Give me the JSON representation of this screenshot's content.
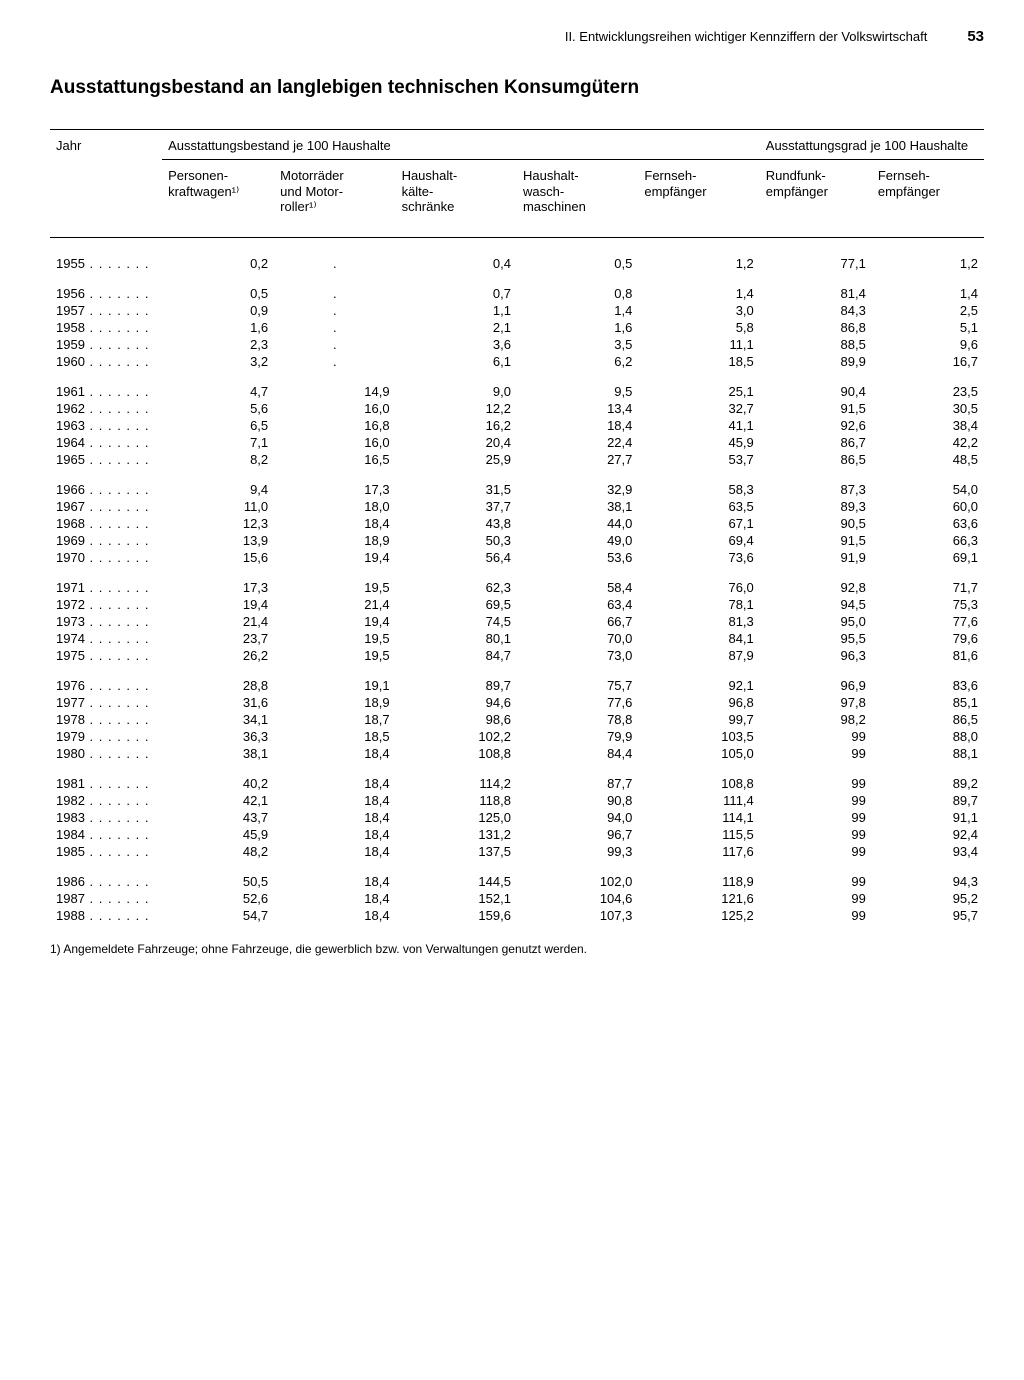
{
  "header": {
    "section": "II. Entwicklungsreihen wichtiger Kennziffern der Volkswirtschaft",
    "page_number": "53"
  },
  "title": "Ausstattungsbestand an langlebigen technischen Konsumgütern",
  "columns": {
    "year": "Jahr",
    "group1": "Ausstattungsbestand je 100 Haushalte",
    "group2": "Ausstattungsgrad je 100 Haushalte",
    "c1": "Personen-\nkraftwagen¹⁾",
    "c2": "Motorräder\nund Motor-\nroller¹⁾",
    "c3": "Haushalt-\nkälte-\nschränke",
    "c4": "Haushalt-\nwasch-\nmaschinen",
    "c5": "Fernseh-\nempfänger",
    "c6": "Rundfunk-\nempfänger",
    "c7": "Fernseh-\nempfänger"
  },
  "footnote": "1) Angemeldete Fahrzeuge; ohne Fahrzeuge, die gewerblich bzw. von Verwaltungen genutzt werden.",
  "rows": [
    {
      "year": "1955",
      "c1": "0,2",
      "c2": ".",
      "c3": "0,4",
      "c4": "0,5",
      "c5": "1,2",
      "c6": "77,1",
      "c7": "1,2",
      "gap": "first"
    },
    {
      "year": "1956",
      "c1": "0,5",
      "c2": ".",
      "c3": "0,7",
      "c4": "0,8",
      "c5": "1,4",
      "c6": "81,4",
      "c7": "1,4",
      "gap": "yes"
    },
    {
      "year": "1957",
      "c1": "0,9",
      "c2": ".",
      "c3": "1,1",
      "c4": "1,4",
      "c5": "3,0",
      "c6": "84,3",
      "c7": "2,5"
    },
    {
      "year": "1958",
      "c1": "1,6",
      "c2": ".",
      "c3": "2,1",
      "c4": "1,6",
      "c5": "5,8",
      "c6": "86,8",
      "c7": "5,1"
    },
    {
      "year": "1959",
      "c1": "2,3",
      "c2": ".",
      "c3": "3,6",
      "c4": "3,5",
      "c5": "11,1",
      "c6": "88,5",
      "c7": "9,6"
    },
    {
      "year": "1960",
      "c1": "3,2",
      "c2": ".",
      "c3": "6,1",
      "c4": "6,2",
      "c5": "18,5",
      "c6": "89,9",
      "c7": "16,7"
    },
    {
      "year": "1961",
      "c1": "4,7",
      "c2": "14,9",
      "c3": "9,0",
      "c4": "9,5",
      "c5": "25,1",
      "c6": "90,4",
      "c7": "23,5",
      "gap": "yes"
    },
    {
      "year": "1962",
      "c1": "5,6",
      "c2": "16,0",
      "c3": "12,2",
      "c4": "13,4",
      "c5": "32,7",
      "c6": "91,5",
      "c7": "30,5"
    },
    {
      "year": "1963",
      "c1": "6,5",
      "c2": "16,8",
      "c3": "16,2",
      "c4": "18,4",
      "c5": "41,1",
      "c6": "92,6",
      "c7": "38,4"
    },
    {
      "year": "1964",
      "c1": "7,1",
      "c2": "16,0",
      "c3": "20,4",
      "c4": "22,4",
      "c5": "45,9",
      "c6": "86,7",
      "c7": "42,2"
    },
    {
      "year": "1965",
      "c1": "8,2",
      "c2": "16,5",
      "c3": "25,9",
      "c4": "27,7",
      "c5": "53,7",
      "c6": "86,5",
      "c7": "48,5"
    },
    {
      "year": "1966",
      "c1": "9,4",
      "c2": "17,3",
      "c3": "31,5",
      "c4": "32,9",
      "c5": "58,3",
      "c6": "87,3",
      "c7": "54,0",
      "gap": "yes"
    },
    {
      "year": "1967",
      "c1": "11,0",
      "c2": "18,0",
      "c3": "37,7",
      "c4": "38,1",
      "c5": "63,5",
      "c6": "89,3",
      "c7": "60,0"
    },
    {
      "year": "1968",
      "c1": "12,3",
      "c2": "18,4",
      "c3": "43,8",
      "c4": "44,0",
      "c5": "67,1",
      "c6": "90,5",
      "c7": "63,6"
    },
    {
      "year": "1969",
      "c1": "13,9",
      "c2": "18,9",
      "c3": "50,3",
      "c4": "49,0",
      "c5": "69,4",
      "c6": "91,5",
      "c7": "66,3"
    },
    {
      "year": "1970",
      "c1": "15,6",
      "c2": "19,4",
      "c3": "56,4",
      "c4": "53,6",
      "c5": "73,6",
      "c6": "91,9",
      "c7": "69,1"
    },
    {
      "year": "1971",
      "c1": "17,3",
      "c2": "19,5",
      "c3": "62,3",
      "c4": "58,4",
      "c5": "76,0",
      "c6": "92,8",
      "c7": "71,7",
      "gap": "yes"
    },
    {
      "year": "1972",
      "c1": "19,4",
      "c2": "21,4",
      "c3": "69,5",
      "c4": "63,4",
      "c5": "78,1",
      "c6": "94,5",
      "c7": "75,3"
    },
    {
      "year": "1973",
      "c1": "21,4",
      "c2": "19,4",
      "c3": "74,5",
      "c4": "66,7",
      "c5": "81,3",
      "c6": "95,0",
      "c7": "77,6"
    },
    {
      "year": "1974",
      "c1": "23,7",
      "c2": "19,5",
      "c3": "80,1",
      "c4": "70,0",
      "c5": "84,1",
      "c6": "95,5",
      "c7": "79,6"
    },
    {
      "year": "1975",
      "c1": "26,2",
      "c2": "19,5",
      "c3": "84,7",
      "c4": "73,0",
      "c5": "87,9",
      "c6": "96,3",
      "c7": "81,6"
    },
    {
      "year": "1976",
      "c1": "28,8",
      "c2": "19,1",
      "c3": "89,7",
      "c4": "75,7",
      "c5": "92,1",
      "c6": "96,9",
      "c7": "83,6",
      "gap": "yes"
    },
    {
      "year": "1977",
      "c1": "31,6",
      "c2": "18,9",
      "c3": "94,6",
      "c4": "77,6",
      "c5": "96,8",
      "c6": "97,8",
      "c7": "85,1"
    },
    {
      "year": "1978",
      "c1": "34,1",
      "c2": "18,7",
      "c3": "98,6",
      "c4": "78,8",
      "c5": "99,7",
      "c6": "98,2",
      "c7": "86,5"
    },
    {
      "year": "1979",
      "c1": "36,3",
      "c2": "18,5",
      "c3": "102,2",
      "c4": "79,9",
      "c5": "103,5",
      "c6": "99",
      "c7": "88,0"
    },
    {
      "year": "1980",
      "c1": "38,1",
      "c2": "18,4",
      "c3": "108,8",
      "c4": "84,4",
      "c5": "105,0",
      "c6": "99",
      "c7": "88,1"
    },
    {
      "year": "1981",
      "c1": "40,2",
      "c2": "18,4",
      "c3": "114,2",
      "c4": "87,7",
      "c5": "108,8",
      "c6": "99",
      "c7": "89,2",
      "gap": "yes"
    },
    {
      "year": "1982",
      "c1": "42,1",
      "c2": "18,4",
      "c3": "118,8",
      "c4": "90,8",
      "c5": "111,4",
      "c6": "99",
      "c7": "89,7"
    },
    {
      "year": "1983",
      "c1": "43,7",
      "c2": "18,4",
      "c3": "125,0",
      "c4": "94,0",
      "c5": "114,1",
      "c6": "99",
      "c7": "91,1"
    },
    {
      "year": "1984",
      "c1": "45,9",
      "c2": "18,4",
      "c3": "131,2",
      "c4": "96,7",
      "c5": "115,5",
      "c6": "99",
      "c7": "92,4"
    },
    {
      "year": "1985",
      "c1": "48,2",
      "c2": "18,4",
      "c3": "137,5",
      "c4": "99,3",
      "c5": "117,6",
      "c6": "99",
      "c7": "93,4"
    },
    {
      "year": "1986",
      "c1": "50,5",
      "c2": "18,4",
      "c3": "144,5",
      "c4": "102,0",
      "c5": "118,9",
      "c6": "99",
      "c7": "94,3",
      "gap": "yes"
    },
    {
      "year": "1987",
      "c1": "52,6",
      "c2": "18,4",
      "c3": "152,1",
      "c4": "104,6",
      "c5": "121,6",
      "c6": "99",
      "c7": "95,2"
    },
    {
      "year": "1988",
      "c1": "54,7",
      "c2": "18,4",
      "c3": "159,6",
      "c4": "107,3",
      "c5": "125,2",
      "c6": "99",
      "c7": "95,7"
    }
  ],
  "col_widths": [
    "12%",
    "12%",
    "13%",
    "13%",
    "13%",
    "13%",
    "12%",
    "12%"
  ]
}
